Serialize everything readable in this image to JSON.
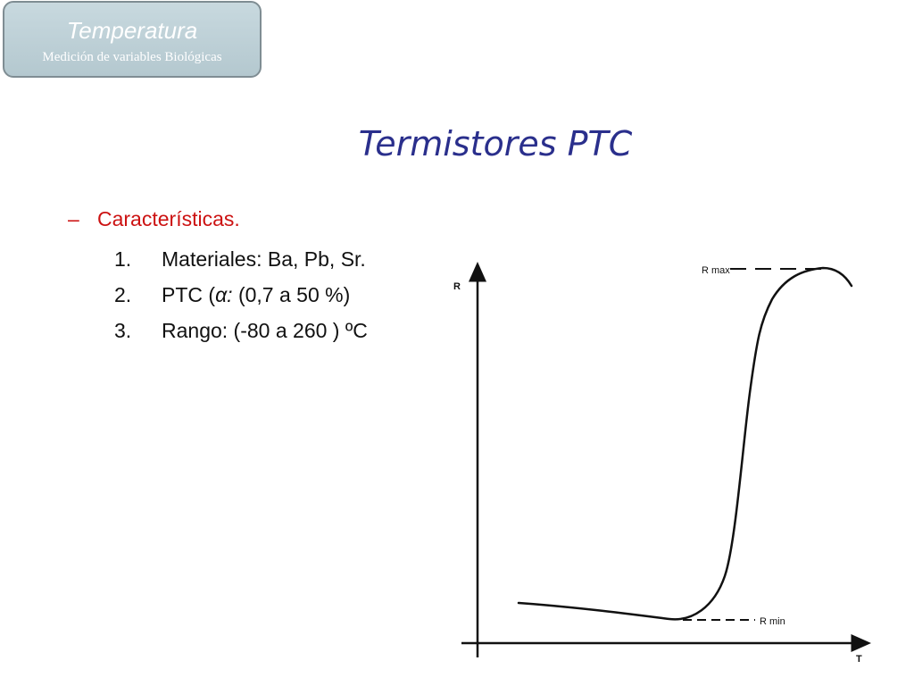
{
  "badge": {
    "title": "Temperatura",
    "subtitle": "Medición de variables Biológicas"
  },
  "slide": {
    "title": "Termistores PTC"
  },
  "content": {
    "dash": "–",
    "heading": "Características.",
    "items": [
      {
        "num": "1.",
        "text": "Materiales: Ba, Pb, Sr."
      },
      {
        "num": "2.",
        "pre": "PTC (",
        "alpha": "α:",
        "post": " (0,7 a 50 %)"
      },
      {
        "num": "3.",
        "text": "Rango: (-80 a 260 ) ºC"
      }
    ]
  },
  "graph": {
    "y_axis_label": "R",
    "x_axis_label": "T",
    "rmax_label": "R max",
    "rmin_label": "R min"
  }
}
